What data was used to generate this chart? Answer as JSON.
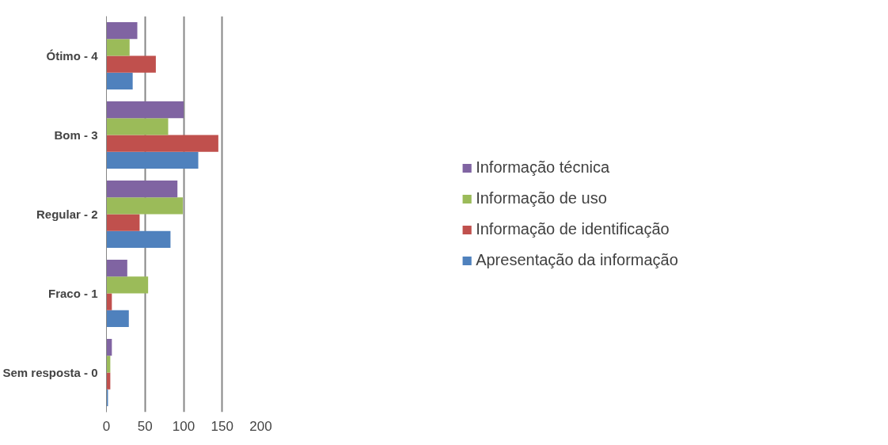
{
  "chart_data": {
    "type": "bar",
    "orientation": "horizontal",
    "categories": [
      "Ótimo - 4",
      "Bom - 3",
      "Regular - 2",
      "Fraco - 1",
      "Sem resposta - 0"
    ],
    "series": [
      {
        "name": "Apresentação da informação",
        "color": "#4f81bd",
        "values": [
          34,
          119,
          83,
          29,
          2
        ]
      },
      {
        "name": "Informação de identificação",
        "color": "#c0504d",
        "values": [
          64,
          145,
          43,
          7,
          5
        ]
      },
      {
        "name": "Informação de uso",
        "color": "#9bbb59",
        "values": [
          30,
          80,
          99,
          54,
          5
        ]
      },
      {
        "name": "Informação técnica",
        "color": "#8064a2",
        "values": [
          40,
          100,
          92,
          27,
          7
        ]
      }
    ],
    "xlim": [
      0,
      200
    ],
    "xticks": [
      0,
      50,
      100,
      150,
      200
    ],
    "grid": "x",
    "legend": "right"
  }
}
